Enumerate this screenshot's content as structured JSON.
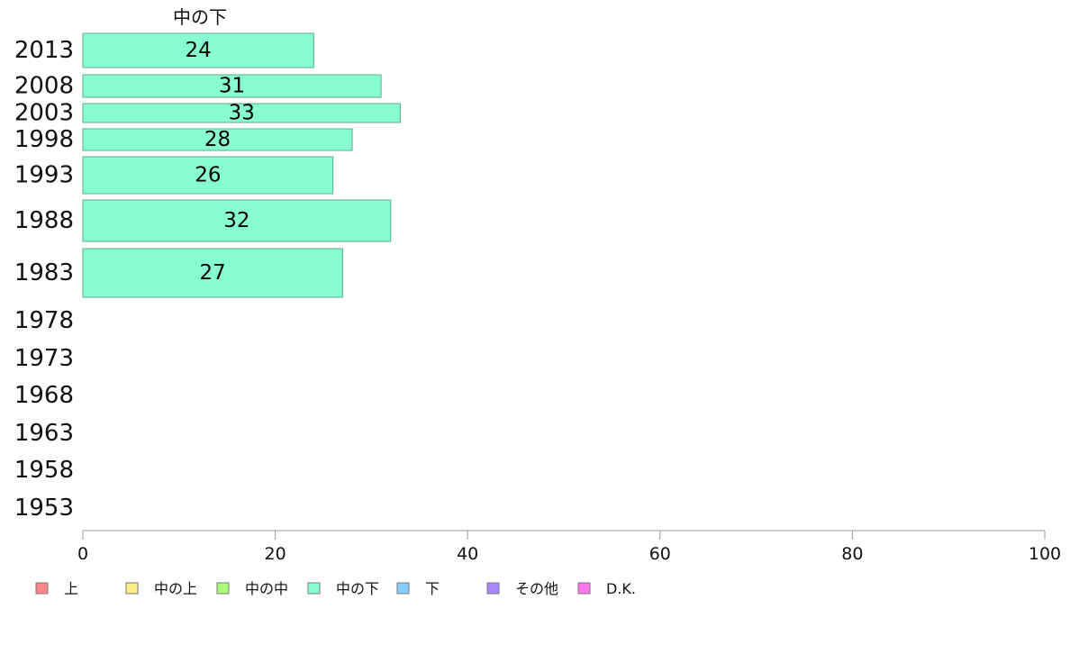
{
  "chart_data": {
    "type": "bar",
    "orientation": "horizontal",
    "title": "",
    "series": [
      {
        "name": "中の下",
        "color": "#88ffd0",
        "points": [
          {
            "year": "2013",
            "value": 24
          },
          {
            "year": "2008",
            "value": 31
          },
          {
            "year": "2003",
            "value": 33
          },
          {
            "year": "1998",
            "value": 28
          },
          {
            "year": "1993",
            "value": 26
          },
          {
            "year": "1988",
            "value": 32
          },
          {
            "year": "1983",
            "value": 27
          },
          {
            "year": "1978",
            "value": null
          },
          {
            "year": "1973",
            "value": null
          },
          {
            "year": "1968",
            "value": null
          },
          {
            "year": "1963",
            "value": null
          },
          {
            "year": "1958",
            "value": null
          },
          {
            "year": "1953",
            "value": null
          }
        ]
      }
    ],
    "xlim": [
      0,
      100
    ],
    "xticks": [
      "0",
      "20",
      "40",
      "60",
      "80",
      "100"
    ],
    "grid": false,
    "legend_position": "bottom",
    "legend": [
      {
        "label": "上",
        "color": "#ff8888"
      },
      {
        "label": "中の上",
        "color": "#ffee88"
      },
      {
        "label": "中の中",
        "color": "#aaff77"
      },
      {
        "label": "中の下",
        "color": "#88ffd0"
      },
      {
        "label": "下",
        "color": "#88ccff"
      },
      {
        "label": "その他",
        "color": "#aa88ff"
      },
      {
        "label": "D.K.",
        "color": "#ff77ee"
      }
    ]
  }
}
